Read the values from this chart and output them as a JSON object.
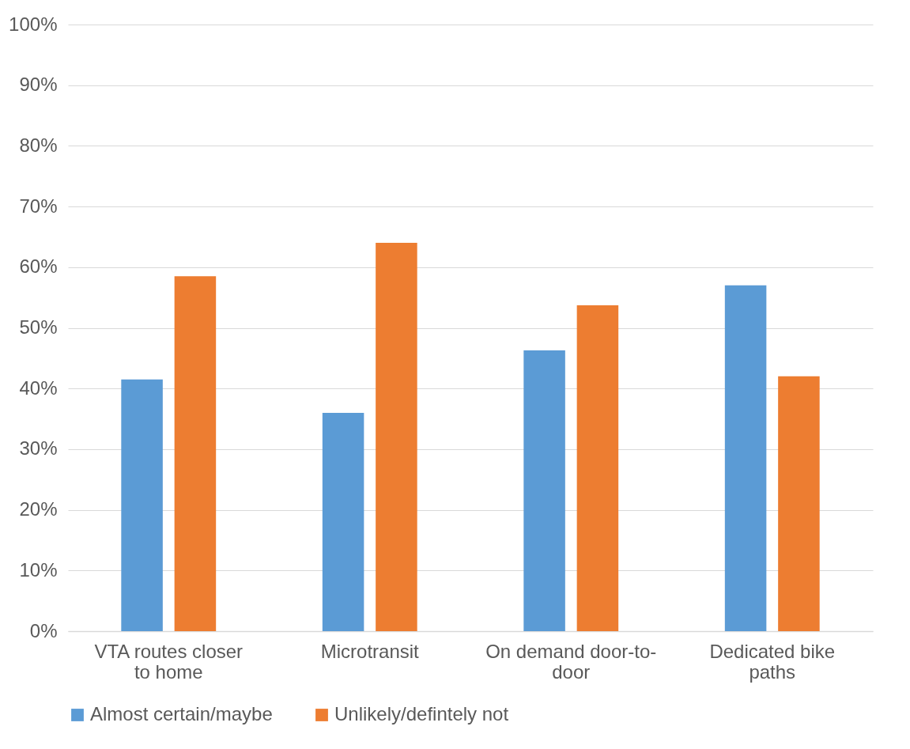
{
  "chart_data": {
    "type": "bar",
    "categories": [
      "VTA routes closer to home",
      "Microtransit",
      "On demand door-to-door",
      "Dedicated bike paths"
    ],
    "series": [
      {
        "name": "Almost certain/maybe",
        "color": "#5b9bd5",
        "values": [
          41.5,
          36,
          46.3,
          57
        ]
      },
      {
        "name": "Unlikely/defintely not",
        "color": "#ed7d31",
        "values": [
          58.5,
          64,
          53.7,
          42
        ]
      }
    ],
    "ylim": [
      0,
      100
    ],
    "yticks": [
      {
        "value": 0,
        "label": "0%"
      },
      {
        "value": 10,
        "label": "10%"
      },
      {
        "value": 20,
        "label": "20%"
      },
      {
        "value": 30,
        "label": "30%"
      },
      {
        "value": 40,
        "label": "40%"
      },
      {
        "value": 50,
        "label": "50%"
      },
      {
        "value": 60,
        "label": "60%"
      },
      {
        "value": 70,
        "label": "70%"
      },
      {
        "value": 80,
        "label": "80%"
      },
      {
        "value": 90,
        "label": "90%"
      },
      {
        "value": 100,
        "label": "100%"
      }
    ],
    "grid": "y",
    "legend": "bottom"
  }
}
